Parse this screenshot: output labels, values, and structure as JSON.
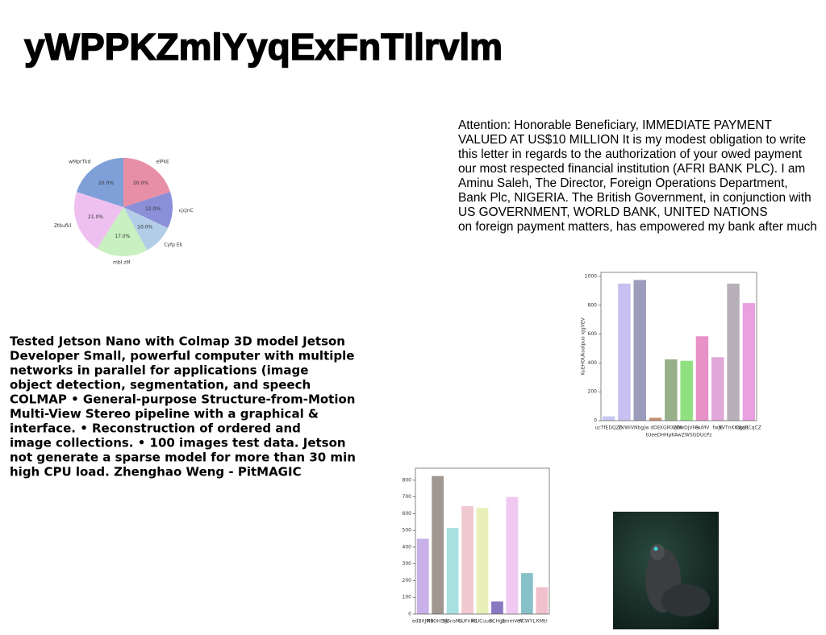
{
  "title": "yWPPKZmlYyqExFnTIlrvlm",
  "letter_lines": [
    "Attention: Honorable Beneficiary, IMMEDIATE PAYMENT",
    "VALUED AT US$10 MILLION It is my modest obligation to write",
    "this letter in regards to the authorization of your owed payment",
    "our most respected financial institution (AFRI BANK PLC). I am",
    "Aminu Saleh, The Director, Foreign Operations Department,",
    "Bank Plc, NIGERIA. The British Government, in conjunction with",
    "US GOVERNMENT, WORLD BANK, UNITED NATIONS",
    "on foreign payment matters, has empowered my bank after much"
  ],
  "article_lines": [
    "Tested Jetson Nano with Colmap 3D model Jetson",
    "Developer Small, powerful computer with multiple",
    "networks in parallel for applications (image",
    "object detection, segmentation, and speech",
    "COLMAP • General-purpose Structure-from-Motion",
    "Multi-View Stereo pipeline with a graphical &",
    "interface. • Reconstruction of ordered and",
    "image collections. • 100 images test data. Jetson",
    "not generate a sparse model for more than 30 min",
    "high CPU load. Zhenghao Weng - PitMAGIC"
  ],
  "chart_data": [
    {
      "type": "pie",
      "categories": [
        "elPkE",
        "cjcJnC",
        "Cyfp Ek",
        "mbI zM",
        "Ztbufkl",
        "wMprTkd"
      ],
      "values": [
        20,
        12,
        10,
        17,
        21,
        20
      ],
      "value_labels": [
        "20.0%",
        "12.0%",
        "10.0%",
        "17.0%",
        "21.0%",
        "20.0%"
      ],
      "colors": [
        "#e88fa8",
        "#8a8fd8",
        "#b3cde8",
        "#c8f0c0",
        "#eec0f0",
        "#7f9fd8"
      ]
    },
    {
      "type": "bar",
      "xlabel": "tUeeDHHpKAwZWSGDUcPz",
      "ylabel": "KuEHOUkoalpuo xJgVEV",
      "categories": [
        "ucTfEDQZb",
        "ZVWi",
        "VNbgjw",
        "dOE",
        "XGMXaNl",
        "ZDwDjVFer",
        "GuMV",
        "fwJE",
        "NVTnKKqyJR",
        "DteBCqCZ"
      ],
      "values": [
        30,
        950,
        975,
        20,
        425,
        415,
        585,
        440,
        950,
        815
      ],
      "colors": [
        "#c8c8f0",
        "#c8c0f0",
        "#9c9cbc",
        "#c89070",
        "#98b088",
        "#90e080",
        "#e890c8",
        "#e0a8d8",
        "#b8b0b8",
        "#e8a0e0"
      ],
      "ylim": [
        0,
        1028
      ],
      "yticks": [
        0,
        200,
        400,
        600,
        800,
        1000
      ]
    },
    {
      "type": "bar",
      "categories": [
        "edBXJMB",
        "RbOHSW",
        "SjSnsMv",
        "CUFnKS",
        "lKUCuum",
        "SCHgx",
        "ZmmVeY",
        "KCWYL",
        "KMtr"
      ],
      "values": [
        450,
        825,
        515,
        645,
        635,
        75,
        700,
        245,
        160
      ],
      "colors": [
        "#c8b0e8",
        "#a09890",
        "#a8e0e0",
        "#f0c8d0",
        "#e8f0b8",
        "#8878c0",
        "#f0c8f0",
        "#88c0c8",
        "#f0c0cc"
      ],
      "ylim": [
        0,
        872
      ],
      "yticks": [
        0,
        100,
        200,
        300,
        400,
        500,
        600,
        700,
        800
      ]
    }
  ]
}
